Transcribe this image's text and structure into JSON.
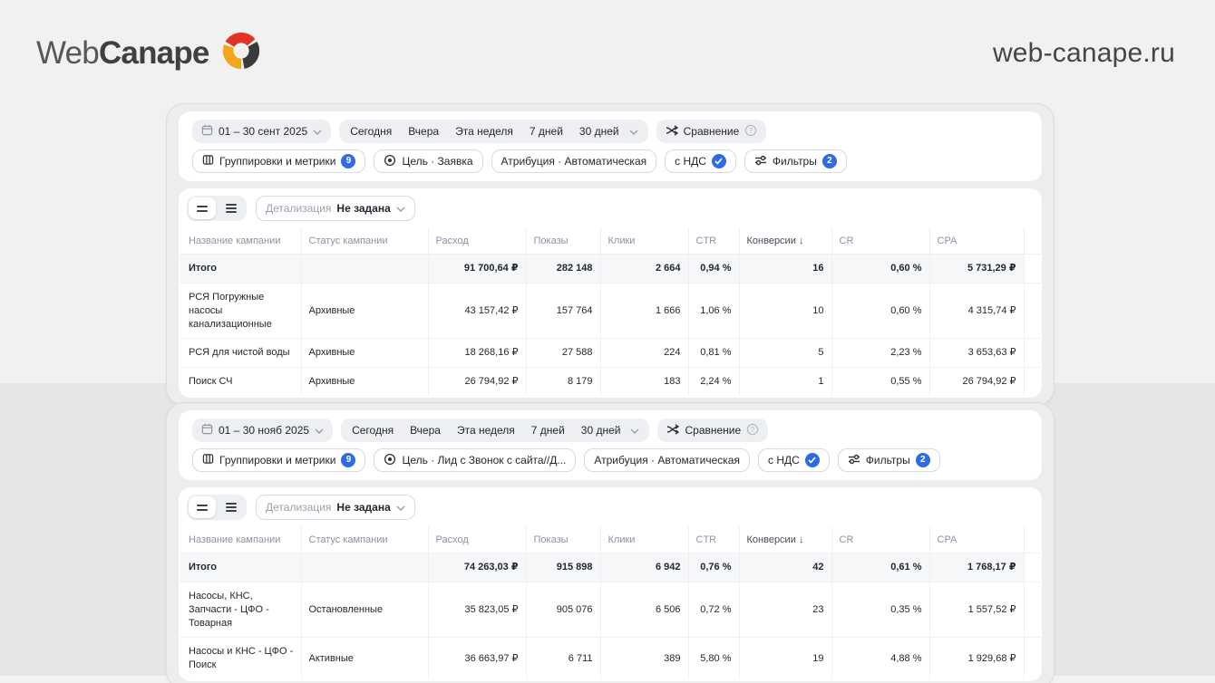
{
  "brand": {
    "logo_part1": "Web",
    "logo_part2": "Canape",
    "site_url": "web-canape.ru"
  },
  "colors": {
    "accent_blue": "#2e6be5",
    "logo_red": "#e23328",
    "logo_dark": "#3b3b3d",
    "logo_yellow": "#f4a51c",
    "page_top_bg": "#f1f1ef",
    "page_bottom_bg": "#e6e6e4"
  },
  "panels": [
    {
      "date_range": "01 – 30 сент 2025",
      "quick": [
        "Сегодня",
        "Вчера",
        "Эта неделя",
        "7 дней",
        "30 дней"
      ],
      "compare_label": "Сравнение",
      "groupings_label": "Группировки и метрики",
      "groupings_badge": "9",
      "goal_label": "Цель · Заявка",
      "attribution_label": "Атрибуция · Автоматическая",
      "vat_label": "с НДС",
      "filters_label": "Фильтры",
      "filters_badge": "2",
      "detail_label": "Детализация",
      "detail_value": "Не задана",
      "table": {
        "columns": [
          "Название кампании",
          "Статус кампании",
          "Расход",
          "Показы",
          "Клики",
          "CTR",
          "Конверсии",
          "CR",
          "CPA"
        ],
        "sort_column_index": 6,
        "sort_arrow": "↓",
        "rows": [
          {
            "total": true,
            "cells": [
              "Итого",
              "",
              "91 700,64 ₽",
              "282 148",
              "2 664",
              "0,94 %",
              "16",
              "0,60 %",
              "5 731,29 ₽"
            ]
          },
          {
            "total": false,
            "cells": [
              "РСЯ Погружные насосы канализационные",
              "Архивные",
              "43 157,42 ₽",
              "157 764",
              "1 666",
              "1,06 %",
              "10",
              "0,60 %",
              "4 315,74 ₽"
            ]
          },
          {
            "total": false,
            "cells": [
              "РСЯ для чистой воды",
              "Архивные",
              "18 268,16 ₽",
              "27 588",
              "224",
              "0,81 %",
              "5",
              "2,23 %",
              "3 653,63 ₽"
            ]
          },
          {
            "total": false,
            "cells": [
              "Поиск СЧ",
              "Архивные",
              "26 794,92 ₽",
              "8 179",
              "183",
              "2,24 %",
              "1",
              "0,55 %",
              "26 794,92 ₽"
            ]
          }
        ]
      }
    },
    {
      "date_range": "01 – 30 нояб 2025",
      "quick": [
        "Сегодня",
        "Вчера",
        "Эта неделя",
        "7 дней",
        "30 дней"
      ],
      "compare_label": "Сравнение",
      "groupings_label": "Группировки и метрики",
      "groupings_badge": "9",
      "goal_label": "Цель · Лид с Звонок с сайта//Д...",
      "attribution_label": "Атрибуция · Автоматическая",
      "vat_label": "с НДС",
      "filters_label": "Фильтры",
      "filters_badge": "2",
      "detail_label": "Детализация",
      "detail_value": "Не задана",
      "table": {
        "columns": [
          "Название кампании",
          "Статус кампании",
          "Расход",
          "Показы",
          "Клики",
          "CTR",
          "Конверсии",
          "CR",
          "CPA"
        ],
        "sort_column_index": 6,
        "sort_arrow": "↓",
        "rows": [
          {
            "total": true,
            "cells": [
              "Итого",
              "",
              "74 263,03 ₽",
              "915 898",
              "6 942",
              "0,76 %",
              "42",
              "0,61 %",
              "1 768,17 ₽"
            ]
          },
          {
            "total": false,
            "cells": [
              "Насосы, КНС, Запчасти - ЦФО - Товарная",
              "Остановленные",
              "35 823,05 ₽",
              "905 076",
              "6 506",
              "0,72 %",
              "23",
              "0,35 %",
              "1 557,52 ₽"
            ]
          },
          {
            "total": false,
            "cells": [
              "Насосы и КНС - ЦФО - Поиск",
              "Активные",
              "36 663,97 ₽",
              "6 711",
              "389",
              "5,80 %",
              "19",
              "4,88 %",
              "1 929,68 ₽"
            ]
          }
        ]
      }
    }
  ]
}
